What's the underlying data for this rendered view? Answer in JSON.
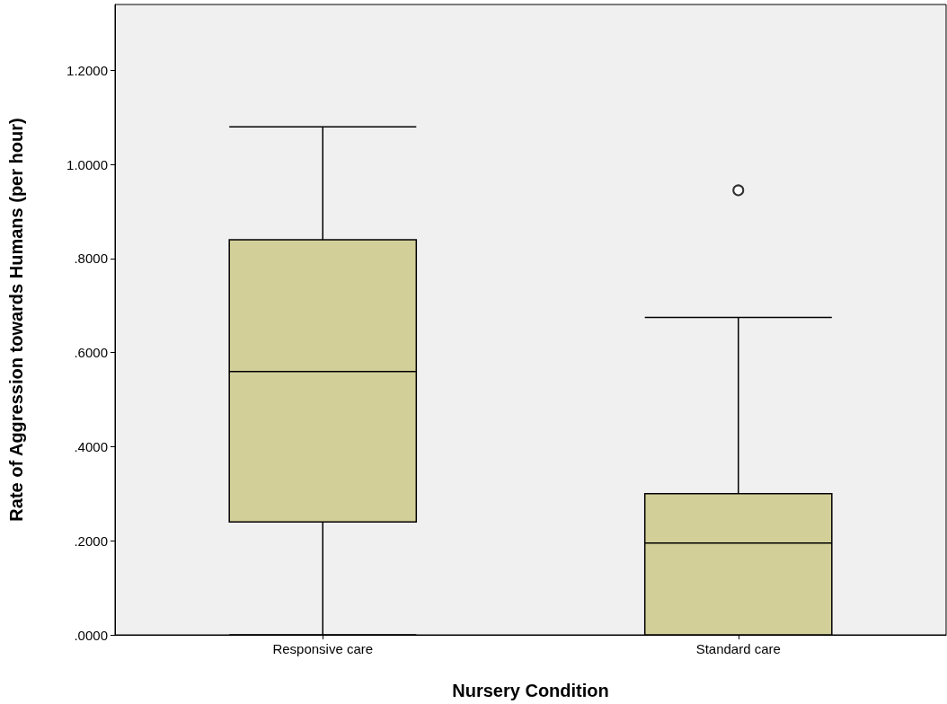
{
  "chart_data": {
    "type": "box",
    "xlabel": "Nursery Condition",
    "ylabel": "Rate of Aggression towards Humans (per hour)",
    "categories": [
      "Responsive care",
      "Standard care"
    ],
    "boxes": [
      {
        "low": 0,
        "q1": 0.24,
        "median": 0.56,
        "q3": 0.84,
        "high": 1.08
      },
      {
        "low": 0,
        "q1": 0,
        "median": 0.195,
        "q3": 0.3,
        "high": 0.675,
        "outliers": [
          0.945
        ]
      }
    ],
    "color": "#d3cf98",
    "ylim": [
      0,
      1.34
    ],
    "yticks": [
      {
        "value": 0,
        "label": ".0000"
      },
      {
        "value": 0.2,
        "label": ".2000"
      },
      {
        "value": 0.4,
        "label": ".4000"
      },
      {
        "value": 0.6,
        "label": ".6000"
      },
      {
        "value": 0.8,
        "label": ".8000"
      },
      {
        "value": 1,
        "label": "1.0000"
      },
      {
        "value": 1.2,
        "label": "1.2000"
      }
    ],
    "grid": false,
    "marker": "circle"
  }
}
